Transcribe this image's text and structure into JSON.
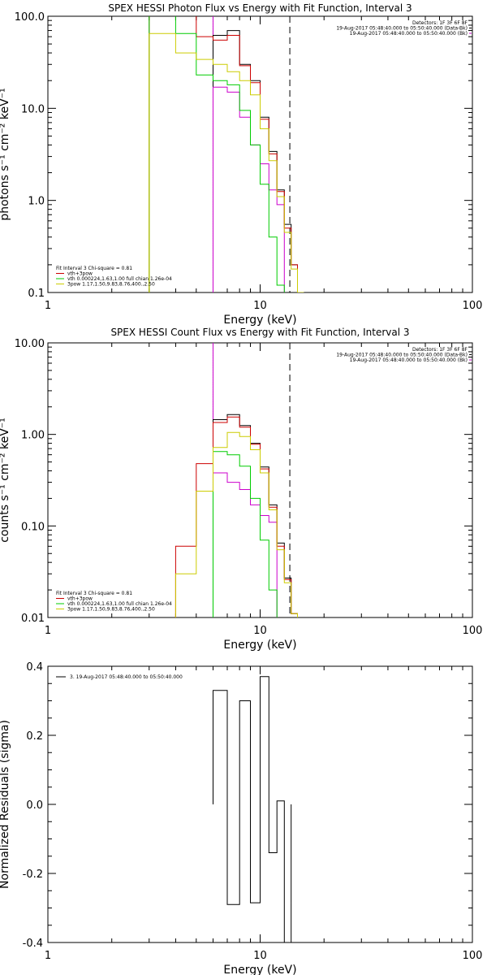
{
  "chart_data": [
    {
      "type": "line",
      "scale": "loglog",
      "title": "SPEX HESSI Photon Flux vs Energy with Fit Function, Interval 3",
      "xlabel": "Energy (keV)",
      "ylabel": "photons s⁻¹ cm⁻² keV⁻¹",
      "xlim": [
        1,
        100
      ],
      "ylim": [
        0.1,
        100
      ],
      "xticks": [
        "1",
        "10",
        "100"
      ],
      "yticks": [
        "0.1",
        "1.0",
        "10.0",
        "100.0"
      ],
      "info_lines": [
        "Detectors: 1F 3F 6F 8F",
        "19-Aug-2017 05:48:40.000 to 05:50:40.000 (Data-Bk)",
        "19-Aug-2017 05:48:40.000 to 05:50:40.000 (Bk)"
      ],
      "fit_text": [
        "Fit Interval 3   Chi-square = 0.81"
      ],
      "legend": [
        {
          "label": "vth+3pow",
          "color": "#cc0000"
        },
        {
          "label": "vth 0.000224,1.63,1.00  full chian 1.26e-04",
          "color": "#00cc00"
        },
        {
          "label": "3pow 1.17,1.50,9.83,8.76,400.,2.50",
          "color": "#cccc00"
        }
      ],
      "vlines": [
        {
          "x": 6.0,
          "style": "dotted",
          "color": "#000000"
        },
        {
          "x": 6.0,
          "style": "solid",
          "color": "#cc00cc"
        },
        {
          "x": 13.8,
          "style": "dashed",
          "color": "#000000"
        }
      ],
      "edges": [
        3.0,
        4.0,
        5.0,
        6.0,
        7.0,
        8.0,
        9.0,
        10.0,
        11.0,
        12.0,
        13.0,
        14.0,
        15.0,
        16.0
      ],
      "series": [
        {
          "name": "Data-Bk",
          "color": "#000000",
          "values": [
            null,
            null,
            null,
            62,
            70,
            30,
            20,
            8,
            3.4,
            1.3,
            0.55,
            0.2,
            null
          ]
        },
        {
          "name": "Bk",
          "color": "#cc00cc",
          "values": [
            null,
            null,
            null,
            17,
            15,
            8,
            4,
            2.5,
            1.3,
            0.9,
            null,
            null,
            null
          ]
        },
        {
          "name": "vth+3pow",
          "color": "#cc0000",
          "values": [
            140,
            120,
            60,
            55,
            62,
            29,
            19,
            7.6,
            3.2,
            1.25,
            0.5,
            0.2,
            null
          ]
        },
        {
          "name": "vth 0.000224,1.63,1.00  full chian 1.26e-04",
          "color": "#00cc00",
          "values": [
            140,
            65,
            23,
            20,
            18,
            9.5,
            4,
            1.5,
            0.4,
            0.12,
            0.04,
            null,
            null
          ]
        },
        {
          "name": "3pow 1.17,1.50,9.83,8.76,400.,2.50",
          "color": "#cccc00",
          "values": [
            65,
            40,
            34,
            30,
            25,
            20,
            14,
            6,
            2.7,
            1.1,
            0.45,
            0.18,
            0.1
          ]
        }
      ]
    },
    {
      "type": "line",
      "scale": "loglog",
      "title": "SPEX HESSI Count Flux vs Energy with Fit Function, Interval 3",
      "xlabel": "Energy (keV)",
      "ylabel": "counts s⁻¹ cm⁻² keV⁻¹",
      "xlim": [
        1,
        100
      ],
      "ylim": [
        0.01,
        10
      ],
      "xticks": [
        "1",
        "10",
        "100"
      ],
      "yticks": [
        "0.01",
        "0.10",
        "1.00",
        "10.00"
      ],
      "info_lines": [
        "Detectors: 1F 3F 6F 8F",
        "19-Aug-2017 05:48:40.000 to 05:50:40.000 (Data-Bk)",
        "19-Aug-2017 05:48:40.000 to 05:50:40.000 (Bk)"
      ],
      "fit_text": [
        "Fit Interval 3   Chi-square = 0.81"
      ],
      "legend": [
        {
          "label": "vth+3pow",
          "color": "#cc0000"
        },
        {
          "label": "vth 0.000224,1.63,1.00  full chian 1.26e-04",
          "color": "#00cc00"
        },
        {
          "label": "3pow 1.17,1.50,9.83,8.76,400.,2.50",
          "color": "#cccc00"
        }
      ],
      "vlines": [
        {
          "x": 6.0,
          "style": "dotted",
          "color": "#000000"
        },
        {
          "x": 6.0,
          "style": "solid",
          "color": "#cc00cc"
        },
        {
          "x": 13.8,
          "style": "dashed",
          "color": "#000000"
        }
      ],
      "edges": [
        4.0,
        5.0,
        6.0,
        7.0,
        8.0,
        9.0,
        10.0,
        11.0,
        12.0,
        13.0,
        14.0,
        15.0,
        16.0
      ],
      "series": [
        {
          "name": "Data-Bk",
          "color": "#000000",
          "values": [
            null,
            null,
            1.45,
            1.65,
            1.25,
            0.8,
            0.44,
            0.17,
            0.065,
            0.027,
            0.011,
            null
          ]
        },
        {
          "name": "Bk",
          "color": "#cc00cc",
          "values": [
            null,
            null,
            0.38,
            0.3,
            0.25,
            0.17,
            0.13,
            0.11,
            null,
            null,
            null,
            null
          ]
        },
        {
          "name": "vth+3pow",
          "color": "#cc0000",
          "values": [
            0.06,
            0.48,
            1.35,
            1.55,
            1.2,
            0.78,
            0.42,
            0.16,
            0.06,
            0.026,
            0.011,
            null
          ]
        },
        {
          "name": "vth 0.000224,1.63,1.00  full chian 1.26e-04",
          "color": "#00cc00",
          "values": [
            null,
            null,
            0.65,
            0.6,
            0.45,
            0.2,
            0.07,
            0.02,
            0.008,
            null,
            null,
            null
          ]
        },
        {
          "name": "3pow 1.17,1.50,9.83,8.76,400.,2.50",
          "color": "#cccc00",
          "values": [
            0.03,
            0.24,
            0.72,
            1.05,
            0.95,
            0.68,
            0.38,
            0.15,
            0.055,
            0.024,
            0.011,
            null
          ]
        }
      ]
    },
    {
      "type": "line",
      "scale": "logx",
      "title": "",
      "xlabel": "Energy (keV)",
      "ylabel": "Normalized Residuals (sigma)",
      "xlim": [
        1,
        100
      ],
      "ylim": [
        -0.4,
        0.4
      ],
      "xticks": [
        "1",
        "10",
        "100"
      ],
      "yticks": [
        "-0.4",
        "-0.2",
        "0.0",
        "0.2",
        "0.4"
      ],
      "legend": [
        {
          "label": "3. 19-Aug-2017 05:48:40.000 to 05:50:40.000",
          "color": "#000000"
        }
      ],
      "edges": [
        6.0,
        7.0,
        8.0,
        9.0,
        10.0,
        11.0,
        12.0,
        13.0,
        14.0
      ],
      "series": [
        {
          "name": "3. 19-Aug-2017 05:48:40.000 to 05:50:40.000",
          "color": "#000000",
          "values": [
            0.33,
            -0.29,
            0.3,
            -0.285,
            0.37,
            -0.14,
            0.01,
            -0.45
          ]
        }
      ]
    }
  ]
}
